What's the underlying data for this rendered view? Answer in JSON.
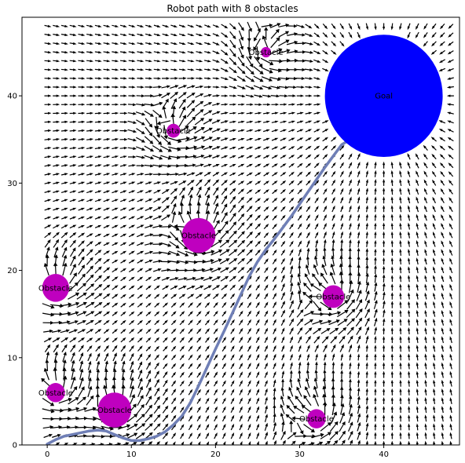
{
  "chart_data": {
    "type": "scatter",
    "title": "Robot path with 8 obstacles",
    "xlabel": "",
    "ylabel": "",
    "xlim": [
      -3,
      49
    ],
    "ylim": [
      0,
      49
    ],
    "xticks": [
      0,
      10,
      20,
      30,
      40
    ],
    "yticks": [
      0,
      10,
      20,
      30,
      40
    ],
    "grid": false,
    "goal": {
      "label": "Goal",
      "x": 40,
      "y": 40,
      "radius": 7,
      "color": "#0000ff"
    },
    "obstacles": [
      {
        "label": "Obstacle",
        "x": 26,
        "y": 45,
        "radius": 0.6
      },
      {
        "label": "Obstacle",
        "x": 15,
        "y": 36,
        "radius": 0.8
      },
      {
        "label": "Obstacle",
        "x": 18,
        "y": 24,
        "radius": 2.0
      },
      {
        "label": "Obstacle",
        "x": 1,
        "y": 18,
        "radius": 1.6
      },
      {
        "label": "Obstacle",
        "x": 34,
        "y": 17,
        "radius": 1.3
      },
      {
        "label": "Obstacle",
        "x": 1,
        "y": 6,
        "radius": 1.1
      },
      {
        "label": "Obstacle",
        "x": 8,
        "y": 4,
        "radius": 2.0
      },
      {
        "label": "Obstacle",
        "x": 32,
        "y": 3,
        "radius": 1.1
      }
    ],
    "obstacle_color": "#bf00bf",
    "path": {
      "color": "#6f7fb6",
      "x": [
        0,
        1,
        2,
        3,
        4,
        5,
        6,
        7,
        8,
        9,
        10,
        11,
        12,
        13,
        14,
        15,
        16,
        17,
        18,
        19,
        20,
        21,
        22,
        23,
        24,
        25,
        26,
        27,
        28,
        29,
        30,
        31,
        32,
        33,
        34,
        35,
        36
      ],
      "y": [
        0.1,
        0.6,
        1.0,
        1.2,
        1.4,
        1.6,
        1.7,
        1.6,
        1.2,
        0.8,
        0.5,
        0.5,
        0.7,
        1.0,
        1.5,
        2.3,
        3.3,
        4.8,
        6.8,
        8.9,
        11.0,
        13.0,
        15.1,
        17.2,
        19.3,
        21.0,
        22.4,
        23.6,
        24.9,
        26.2,
        27.6,
        29.0,
        30.4,
        31.8,
        33.1,
        34.4,
        35.0
      ]
    },
    "quiver": {
      "grid_x": [
        0,
        48,
        1
      ],
      "grid_y": [
        0,
        48,
        1
      ],
      "color": "#000000"
    }
  }
}
